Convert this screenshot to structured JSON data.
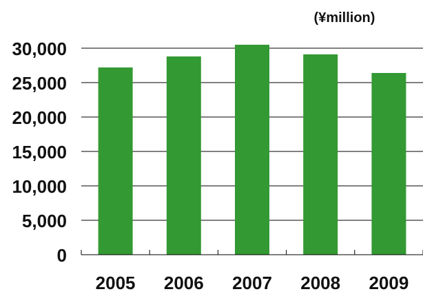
{
  "chart_data": {
    "type": "bar",
    "unit_label": "(¥million)",
    "categories": [
      "2005",
      "2006",
      "2007",
      "2008",
      "2009"
    ],
    "values": [
      27200,
      28800,
      30500,
      29100,
      26400
    ],
    "ylim": [
      0,
      30000
    ],
    "yticks": [
      0,
      5000,
      10000,
      15000,
      20000,
      25000,
      30000
    ],
    "ytick_labels": [
      "0",
      "5,000",
      "10,000",
      "15,000",
      "20,000",
      "25,000",
      "30,000"
    ],
    "grid": true,
    "colors": {
      "bar": "#339933",
      "grid": "#000000",
      "text": "#111111"
    }
  }
}
